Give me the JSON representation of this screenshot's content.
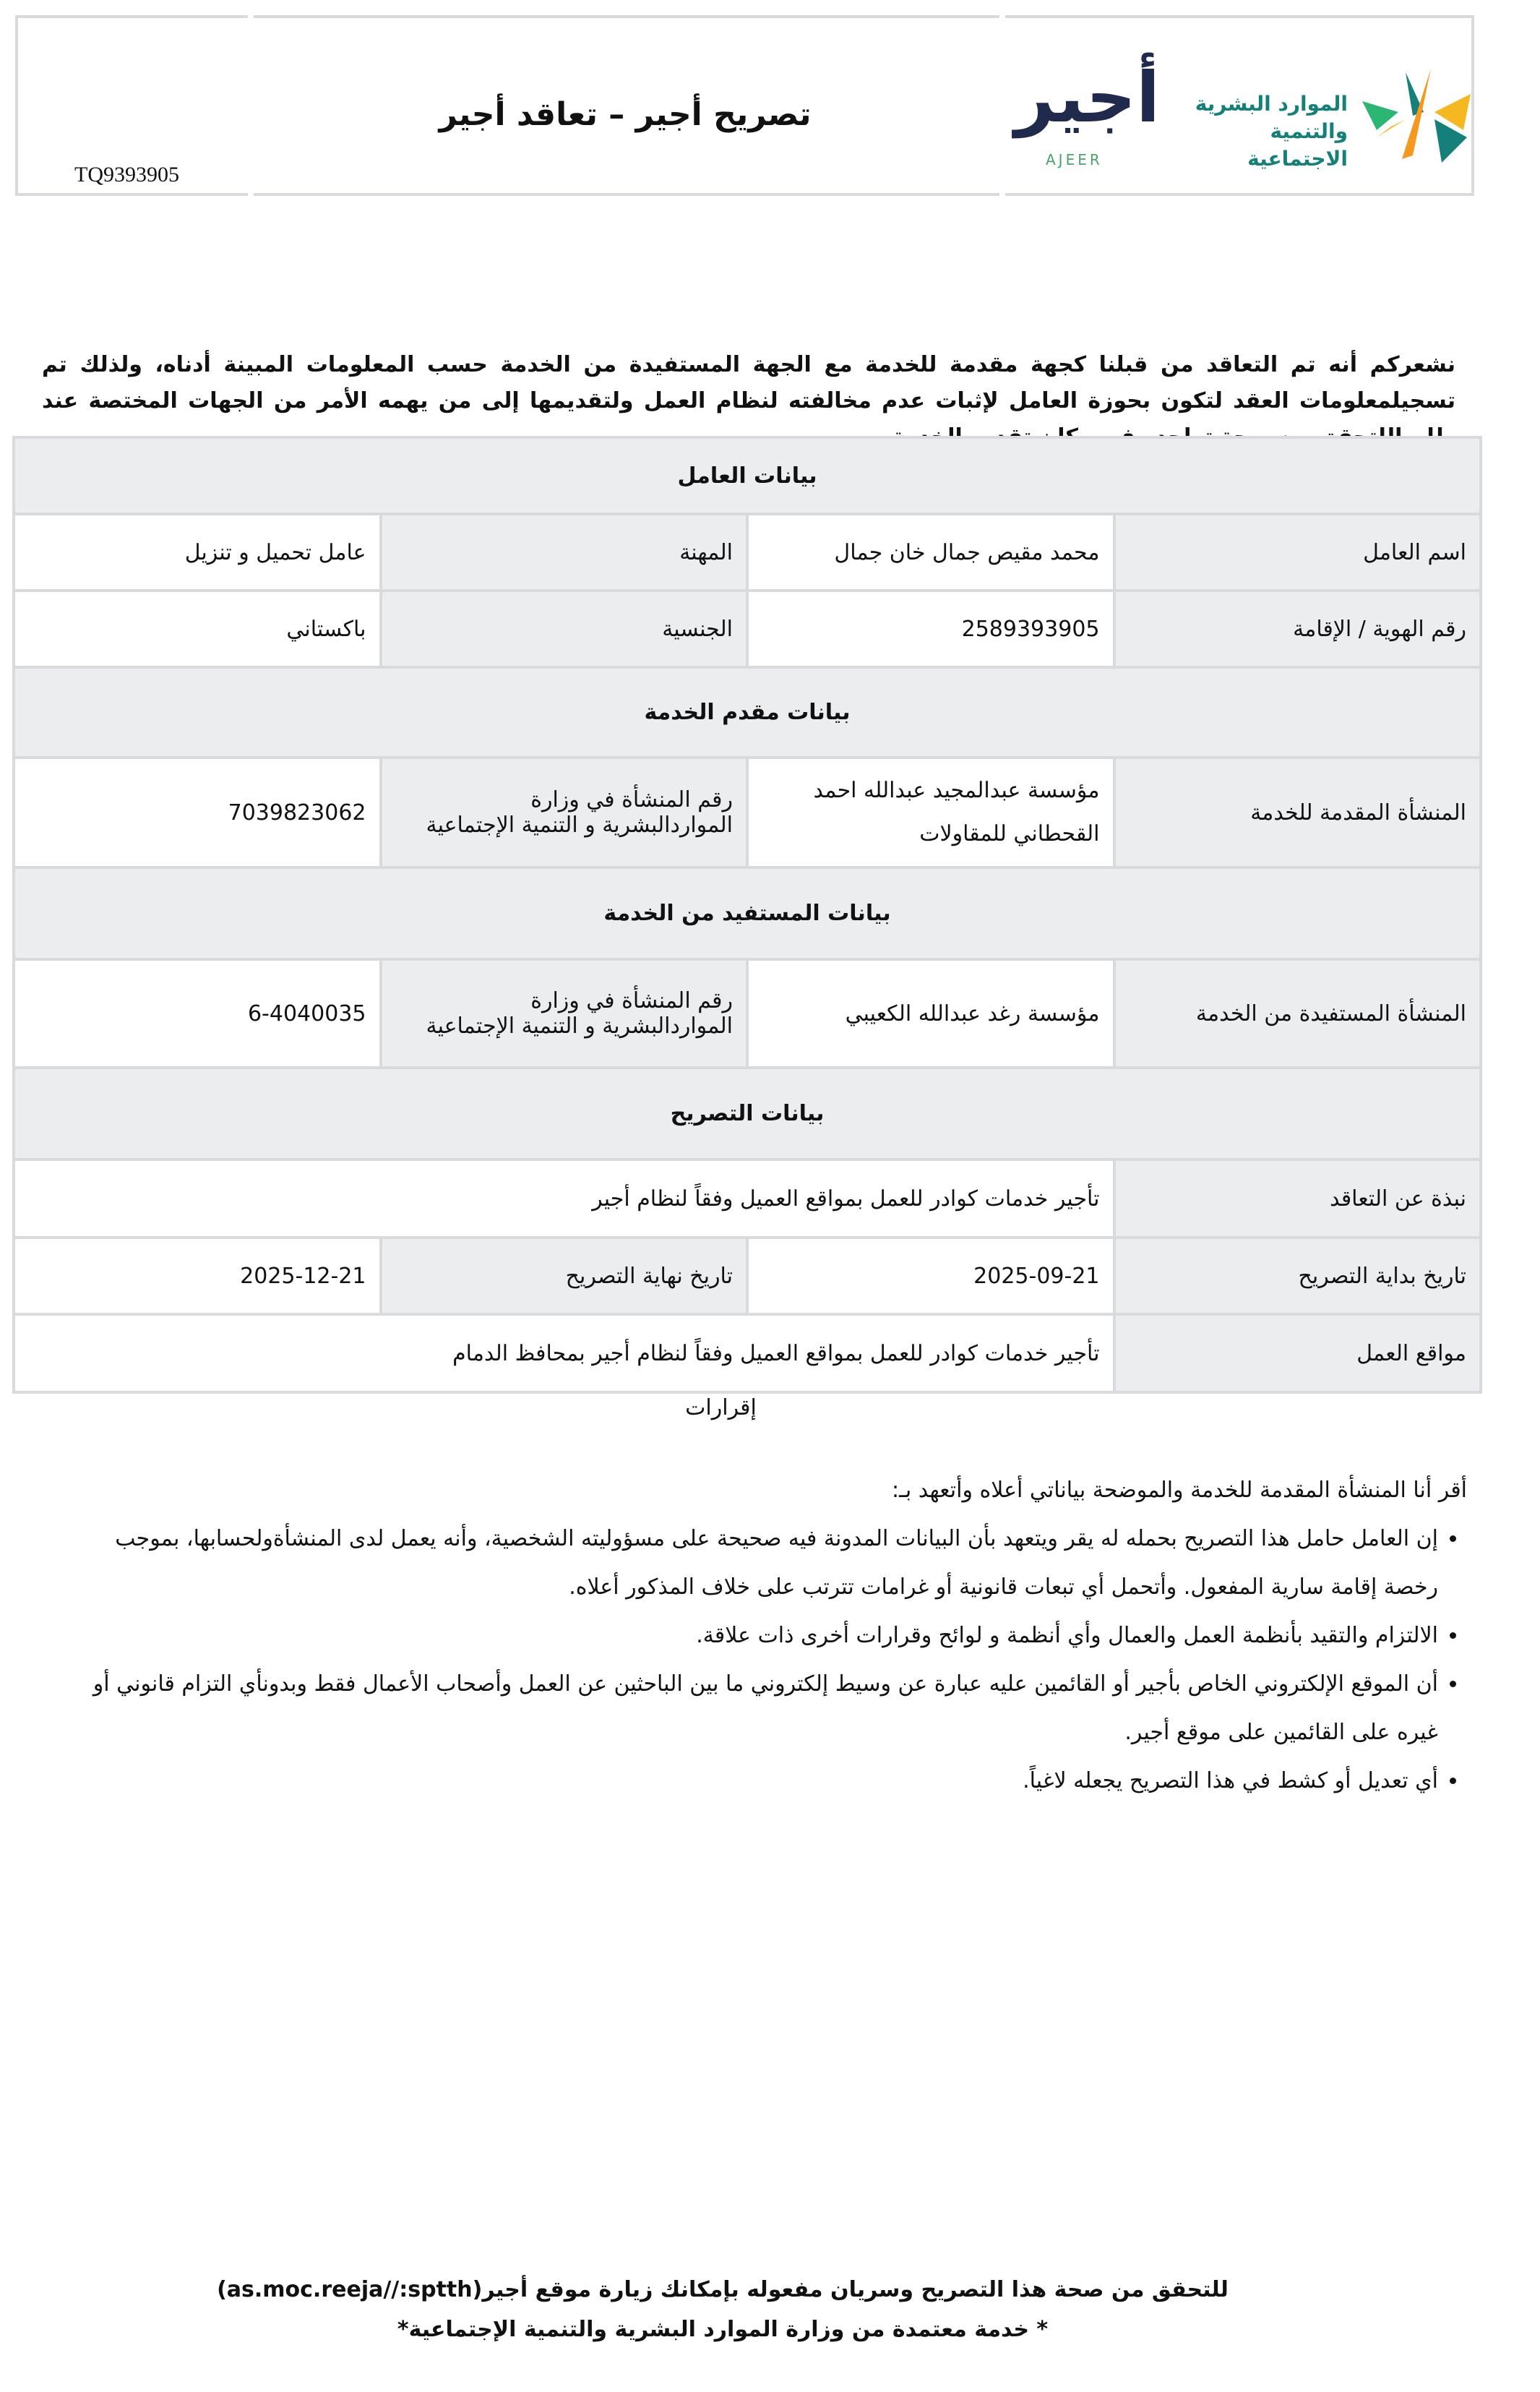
{
  "header": {
    "document_id": "TQ9393905",
    "title": "تصريح أجير –  تعاقد أجير",
    "ajeer_logo_text": "أجير",
    "ajeer_logo_latin": "AJEER",
    "ministry_logo_text_line1": "الموارد البشرية",
    "ministry_logo_text_line2": "والتنمية الاجتماعية",
    "colors": {
      "ajeer_navy": "#1f2a4d",
      "ajeer_green": "#4aa36a",
      "ministry_teal": "#15807a",
      "ministry_orange": "#f39a1e",
      "ministry_yellow": "#f6b820",
      "ministry_green": "#2bb673"
    }
  },
  "intro": "نشعركم أنه تم التعاقد من قبلنا كجهة مقدمة للخدمة مع الجهة المستفيدة من الخدمة حسب المعلومات المبينة أدناه، ولذلك تم تسجيلمعلومات العقد لتكون بحوزة العامل لإثبات عدم مخالفته لنظام العمل ولتقديمها إلى من يهمه الأمر من الجهات المختصة عند طلبهاللتحقق من صحة تواجده في مكان تقديم الخدمة",
  "worker": {
    "section_title": "بيانات العامل",
    "name_label": "اسم العامل",
    "name_value": "محمد مقيص جمال خان جمال",
    "occupation_label": "المهنة",
    "occupation_value": "عامل تحميل و تنزيل",
    "id_label": "رقم الهوية / الإقامة",
    "id_value": "2589393905",
    "nationality_label": "الجنسية",
    "nationality_value": "باكستاني"
  },
  "provider": {
    "section_title": "بيانات مقدم الخدمة",
    "org_label": "المنشأة المقدمة للخدمة",
    "org_value": "مؤسسة عبدالمجيد عبدالله احمد القحطاني للمقاولات",
    "number_label": "رقم المنشأة في وزارة المواردالبشرية و التنمية الإجتماعية",
    "number_value": "7039823062"
  },
  "beneficiary": {
    "section_title": "بيانات المستفيد من الخدمة",
    "org_label": "المنشأة المستفيدة من الخدمة",
    "org_value": "مؤسسة رغد عبدالله الكعيبي",
    "number_label": "رقم المنشأة في وزارة المواردالبشرية و التنمية الإجتماعية",
    "number_value": "6-4040035"
  },
  "permit": {
    "section_title": "بيانات التصريح",
    "summary_label": "نبذة عن التعاقد",
    "summary_value": "تأجير خدمات كوادر للعمل بمواقع العميل وفقاً لنظام أجير",
    "start_label": "تاريخ بداية التصريح",
    "start_value": "2025-09-21",
    "end_label": "تاريخ نهاية التصريح",
    "end_value": "2025-12-21",
    "locations_label": "مواقع العمل",
    "locations_value": "تأجير خدمات كوادر للعمل بمواقع العميل وفقاً لنظام أجير بمحافظ الدمام"
  },
  "declarations": {
    "title": "إقرارات",
    "lead": "أقر أنا المنشأة المقدمة للخدمة والموضحة بياناتي أعلاه وأتعهد بـ:",
    "items": [
      "إن العامل حامل هذا التصريح بحمله له يقر ويتعهد بأن البيانات المدونة فيه صحيحة على مسؤوليته الشخصية، وأنه يعمل لدى المنشأةولحسابها، بموجب رخصة إقامة سارية المفعول. وأتحمل أي تبعات قانونية أو غرامات تترتب على خلاف المذكور أعلاه.",
      "الالتزام والتقيد بأنظمة العمل والعمال وأي أنظمة و لوائح وقرارات أخرى ذات علاقة.",
      "أن الموقع الإلكتروني الخاص بأجير أو القائمين عليه عبارة عن وسيط إلكتروني ما بين الباحثين عن العمل وأصحاب الأعمال فقط وبدونأي التزام قانوني أو غيره على القائمين على موقع أجير.",
      "أي تعديل أو كشط في هذا التصريح يجعله لاغياً."
    ]
  },
  "footer": {
    "verify": "للتحقق من صحة هذا التصريح وسريان مفعوله بإمكانك زيارة موقع أجير(as.moc.reeja//:sptth)",
    "approved": "* خدمة معتمدة من وزارة الموارد البشرية والتنمية الإجتماعية*"
  }
}
